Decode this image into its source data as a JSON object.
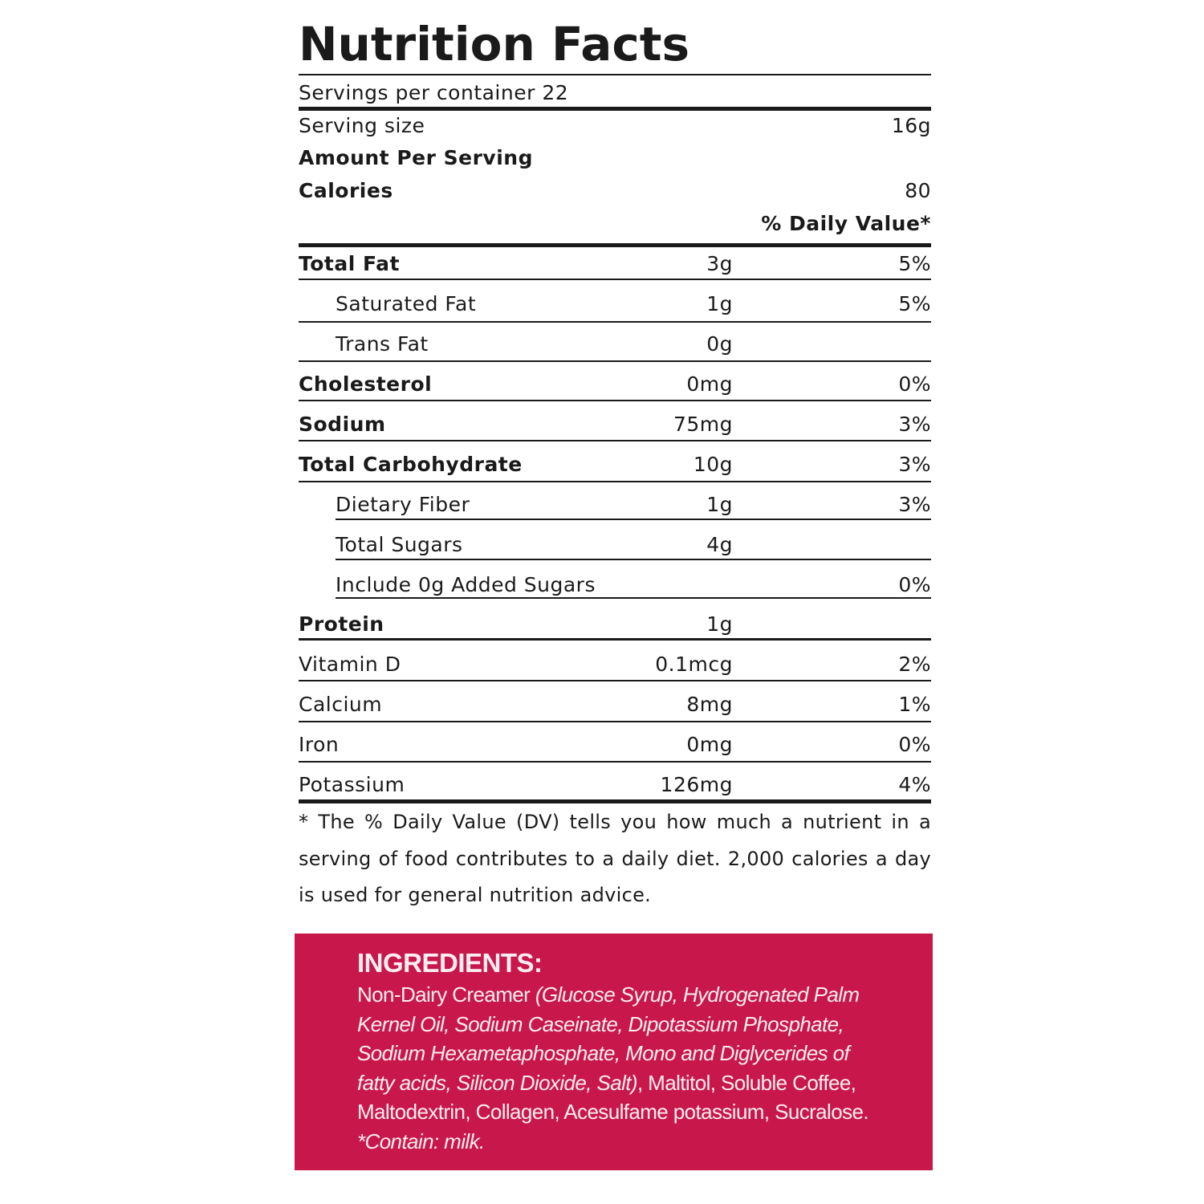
{
  "header": {
    "title": "Nutrition Facts",
    "servings_per_container": "Servings per container 22",
    "serving_size_label": "Serving size",
    "serving_size": "16g",
    "amount_per_serving": "Amount Per Serving",
    "calories_label": "Calories",
    "calories": "80",
    "daily_value_header": "% Daily Value*"
  },
  "nutrients": [
    {
      "name": "Total Fat",
      "amount": "3g",
      "dv": "5%"
    },
    {
      "name": "Saturated Fat",
      "amount": "1g",
      "dv": "5%"
    },
    {
      "name": "Trans Fat",
      "amount": "0g"
    },
    {
      "name": "Cholesterol",
      "amount": "0mg",
      "dv": "0%"
    },
    {
      "name": "Sodium",
      "amount": "75mg",
      "dv": "3%"
    },
    {
      "name": "Total Carbohydrate",
      "amount": "10g",
      "dv": "3%"
    },
    {
      "name": "Dietary Fiber",
      "amount": "1g",
      "dv": "3%"
    },
    {
      "name": "Total Sugars",
      "amount": "4g"
    },
    {
      "name": "Include 0g Added Sugars",
      "dv": "0%"
    },
    {
      "name": "Protein",
      "amount": "1g"
    },
    {
      "name": "Vitamin D",
      "amount": "0.1mcg",
      "dv": "2%"
    },
    {
      "name": "Calcium",
      "amount": "8mg",
      "dv": "1%"
    },
    {
      "name": "Iron",
      "amount": "0mg",
      "dv": "0%"
    },
    {
      "name": "Potassium",
      "amount": "126mg",
      "dv": "4%"
    }
  ],
  "footnote": "* The % Daily Value (DV) tells you how much a nutrient in a serving of food contributes to a daily diet. 2,000 calories a day is used for general nutrition advice.",
  "ingredients": {
    "title": "INGREDIENTS:",
    "lead": "Non-Dairy Creamer",
    "creamer_detail": "(Glucose Syrup, Hydrogenated Palm Kernel Oil, Sodium Caseinate, Dipotassium Phosphate, Sodium Hexametaphosphate, Mono and Diglycerides of fatty acids, Silicon Dioxide, Salt)",
    "rest": ", Maltitol, Soluble Coffee, Maltodextrin, Collagen, Acesulfame potassium, Sucralose.",
    "allergen": "*Contain: milk."
  }
}
